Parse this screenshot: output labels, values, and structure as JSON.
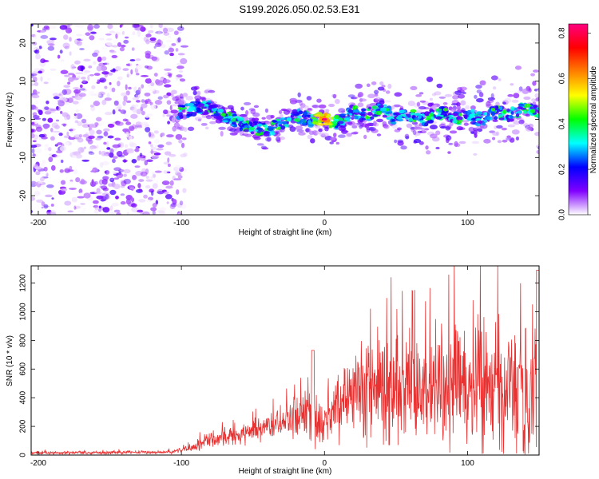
{
  "title": "S199.2026.050.02.53.E31",
  "chart_data": [
    {
      "type": "heatmap",
      "name": "spectrogram",
      "xlabel": "Height of straight line (km)",
      "ylabel": "Frequency (Hz)",
      "xlim": [
        -205,
        150
      ],
      "ylim": [
        -25,
        25
      ],
      "xticks": [
        -200,
        -100,
        0,
        100
      ],
      "yticks": [
        -20,
        -10,
        0,
        10,
        20
      ],
      "colorbar": {
        "label": "Normalized spectral amplitude",
        "range": [
          0.0,
          0.84
        ],
        "ticks": [
          "0.0",
          "0.2",
          "0.4",
          "0.6",
          "0.8"
        ],
        "tick_values": [
          0.0,
          0.2,
          0.4,
          0.6,
          0.8
        ],
        "colors": [
          "#ffffff",
          "#8000ff",
          "#0000ff",
          "#00ffff",
          "#00ff00",
          "#ffff00",
          "#ff8000",
          "#ff0000",
          "#ff0080"
        ]
      },
      "features": {
        "noise_region_x": [
          -205,
          -100
        ],
        "ridge_points": [
          {
            "x": -100,
            "y": 2
          },
          {
            "x": -90,
            "y": 3
          },
          {
            "x": -80,
            "y": 3
          },
          {
            "x": -70,
            "y": 1
          },
          {
            "x": -60,
            "y": -1
          },
          {
            "x": -50,
            "y": -2
          },
          {
            "x": -40,
            "y": -3
          },
          {
            "x": -30,
            "y": -1
          },
          {
            "x": -20,
            "y": 1
          },
          {
            "x": -10,
            "y": 0
          },
          {
            "x": 0,
            "y": 0
          },
          {
            "x": 10,
            "y": -1
          },
          {
            "x": 20,
            "y": 2
          },
          {
            "x": 30,
            "y": 1
          },
          {
            "x": 40,
            "y": 3
          },
          {
            "x": 50,
            "y": 0
          },
          {
            "x": 60,
            "y": 1
          },
          {
            "x": 70,
            "y": 0
          },
          {
            "x": 80,
            "y": 2
          },
          {
            "x": 90,
            "y": 0
          },
          {
            "x": 100,
            "y": 1
          },
          {
            "x": 110,
            "y": 0
          },
          {
            "x": 120,
            "y": 2
          },
          {
            "x": 130,
            "y": 1
          },
          {
            "x": 140,
            "y": 3
          },
          {
            "x": 150,
            "y": 2
          }
        ],
        "peak": {
          "x": 0,
          "y": 0,
          "value": 0.84
        }
      }
    },
    {
      "type": "line",
      "name": "snr",
      "xlabel": "Height of straight line (km)",
      "ylabel": "SNR (10 * v/v)",
      "xlim": [
        -205,
        150
      ],
      "ylim": [
        0,
        1320
      ],
      "xticks": [
        -200,
        -100,
        0,
        100
      ],
      "yticks": [
        0,
        200,
        400,
        600,
        800,
        1000,
        1200
      ],
      "color": "#e83232",
      "envelope": [
        {
          "x": -205,
          "mean": 15,
          "amp": 12
        },
        {
          "x": -110,
          "mean": 20,
          "amp": 15
        },
        {
          "x": -95,
          "mean": 45,
          "amp": 30
        },
        {
          "x": -80,
          "mean": 110,
          "amp": 70
        },
        {
          "x": -60,
          "mean": 140,
          "amp": 90
        },
        {
          "x": -40,
          "mean": 200,
          "amp": 120
        },
        {
          "x": -20,
          "mean": 250,
          "amp": 200
        },
        {
          "x": -8,
          "mean": 260,
          "amp": 300
        },
        {
          "x": 0,
          "mean": 200,
          "amp": 160
        },
        {
          "x": 10,
          "mean": 350,
          "amp": 300
        },
        {
          "x": 30,
          "mean": 480,
          "amp": 450
        },
        {
          "x": 60,
          "mean": 460,
          "amp": 520
        },
        {
          "x": 100,
          "mean": 470,
          "amp": 560
        },
        {
          "x": 130,
          "mean": 500,
          "amp": 650
        },
        {
          "x": 150,
          "mean": 480,
          "amp": 700
        }
      ]
    }
  ]
}
